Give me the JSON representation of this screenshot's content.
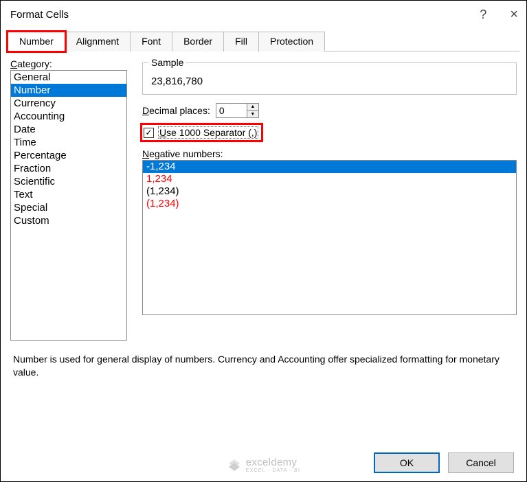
{
  "dialog": {
    "title": "Format Cells",
    "help_glyph": "?",
    "close_glyph": "×"
  },
  "tabs": {
    "items": [
      {
        "label": "Number",
        "active": true,
        "highlight": true
      },
      {
        "label": "Alignment",
        "active": false,
        "highlight": false
      },
      {
        "label": "Font",
        "active": false,
        "highlight": false
      },
      {
        "label": "Border",
        "active": false,
        "highlight": false
      },
      {
        "label": "Fill",
        "active": false,
        "highlight": false
      },
      {
        "label": "Protection",
        "active": false,
        "highlight": false
      }
    ]
  },
  "category": {
    "label": "Category:",
    "items": [
      {
        "label": "General",
        "selected": false
      },
      {
        "label": "Number",
        "selected": true
      },
      {
        "label": "Currency",
        "selected": false
      },
      {
        "label": "Accounting",
        "selected": false
      },
      {
        "label": "Date",
        "selected": false
      },
      {
        "label": "Time",
        "selected": false
      },
      {
        "label": "Percentage",
        "selected": false
      },
      {
        "label": "Fraction",
        "selected": false
      },
      {
        "label": "Scientific",
        "selected": false
      },
      {
        "label": "Text",
        "selected": false
      },
      {
        "label": "Special",
        "selected": false
      },
      {
        "label": "Custom",
        "selected": false
      }
    ]
  },
  "sample": {
    "label": "Sample",
    "value": "23,816,780"
  },
  "decimal": {
    "label": "Decimal places:",
    "value": "0"
  },
  "separator": {
    "checked": true,
    "highlight": true,
    "label": "Use 1000 Separator (,)",
    "check_glyph": "✓"
  },
  "negative": {
    "label": "Negative numbers:",
    "items": [
      {
        "label": "-1,234",
        "color": "#ffffff",
        "bg": "#0078d7",
        "selected": true
      },
      {
        "label": "1,234",
        "color": "#ff0000",
        "bg": "#ffffff",
        "selected": false
      },
      {
        "label": "(1,234)",
        "color": "#000000",
        "bg": "#ffffff",
        "selected": false
      },
      {
        "label": "(1,234)",
        "color": "#ff0000",
        "bg": "#ffffff",
        "selected": false
      }
    ]
  },
  "description": "Number is used for general display of numbers.  Currency and Accounting offer specialized formatting for monetary value.",
  "buttons": {
    "ok": "OK",
    "cancel": "Cancel"
  },
  "watermark": {
    "main": "exceldemy",
    "sub": "EXCEL · DATA · BI"
  },
  "colors": {
    "accent_highlight": "#ff0000",
    "selection_bg": "#0078d7",
    "selection_fg": "#ffffff",
    "border": "#888888",
    "button_primary_border": "#0067c0"
  }
}
